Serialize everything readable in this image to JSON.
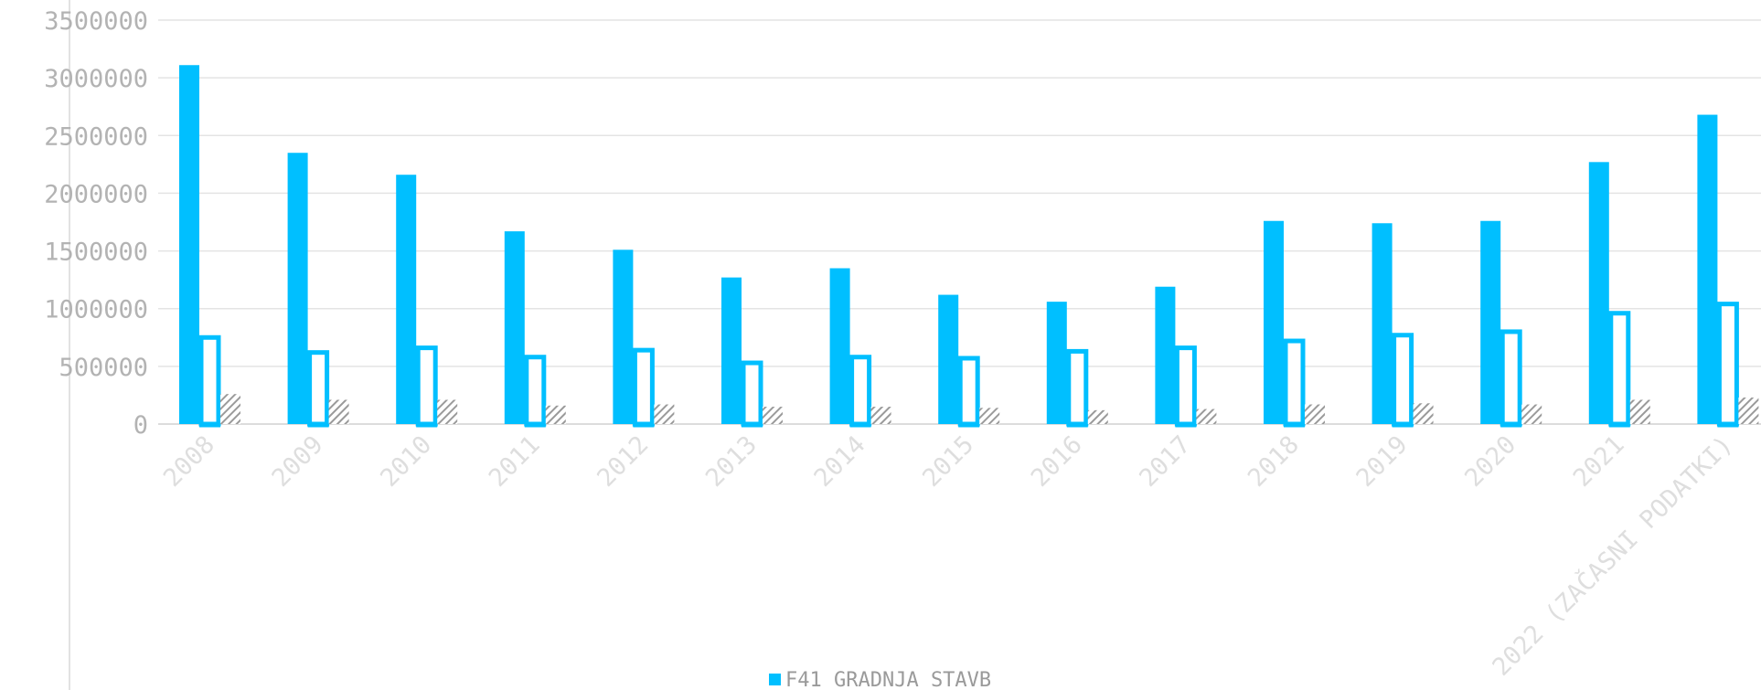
{
  "chart_data": {
    "type": "bar",
    "categories": [
      "2008",
      "2009",
      "2010",
      "2011",
      "2012",
      "2013",
      "2014",
      "2015",
      "2016",
      "2017",
      "2018",
      "2019",
      "2020",
      "2021",
      "2022 (ZAČASNI PODATKI)"
    ],
    "series": [
      {
        "name": "F41 GRADNJA STAVB",
        "style": "solid",
        "color": "#00bfff",
        "values": [
          3110000,
          2350000,
          2160000,
          1670000,
          1510000,
          1270000,
          1350000,
          1120000,
          1060000,
          1190000,
          1760000,
          1740000,
          1760000,
          2270000,
          2680000
        ]
      },
      {
        "style": "outline",
        "color": "#00bfff",
        "values": [
          770000,
          640000,
          680000,
          600000,
          660000,
          550000,
          600000,
          590000,
          650000,
          680000,
          740000,
          790000,
          820000,
          980000,
          1060000
        ]
      },
      {
        "style": "hatched",
        "color": "#9a9a9a",
        "values": [
          260000,
          210000,
          210000,
          160000,
          170000,
          150000,
          150000,
          140000,
          120000,
          130000,
          170000,
          180000,
          170000,
          210000,
          230000
        ]
      },
      {
        "style": "small-outline",
        "color": "#00bfff",
        "values": [
          0,
          0,
          0,
          0,
          0,
          0,
          0,
          0,
          0,
          0,
          0,
          0,
          0,
          0,
          0
        ]
      }
    ],
    "ylim": [
      0,
      3500000
    ],
    "yticks": [
      "0",
      "500000",
      "1000000",
      "1500000",
      "2000000",
      "2500000",
      "3000000",
      "3500000"
    ],
    "grid": true,
    "legend_position": "bottom-center",
    "legend": [
      {
        "label": "F41 GRADNJA STAVB",
        "color": "#00bfff"
      }
    ]
  }
}
